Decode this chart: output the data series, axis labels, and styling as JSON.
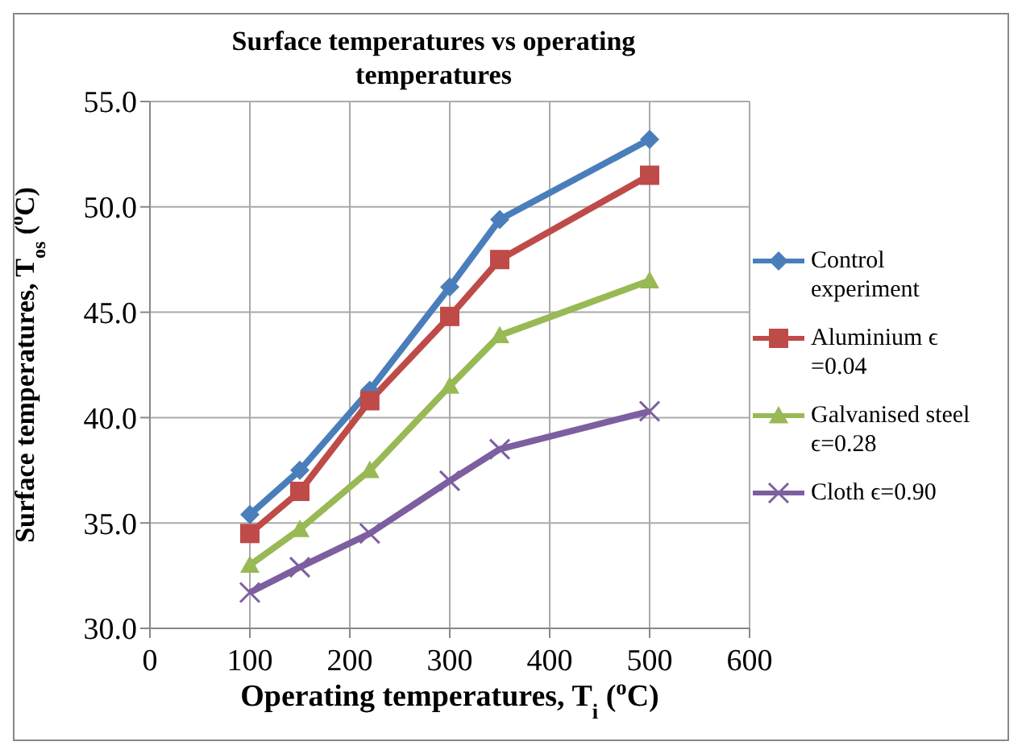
{
  "chart_data": {
    "type": "line",
    "title": "Surface temperatures vs operating temperatures",
    "xlabel": "Operating temperatures, T$_{i}$ ($^{o}$C)",
    "ylabel": "Surface temperatures, T$_{os}$ ($^{o}$C)",
    "x": [
      100,
      150,
      220,
      300,
      350,
      500
    ],
    "series": [
      {
        "name": "Control experiment",
        "color": "#4a7ebb",
        "marker": "diamond",
        "values": [
          35.4,
          37.5,
          41.3,
          46.2,
          49.4,
          53.2
        ]
      },
      {
        "name": "Aluminium ϵ =0.04",
        "color": "#be4b48",
        "marker": "square",
        "values": [
          34.5,
          36.5,
          40.8,
          44.8,
          47.5,
          51.5
        ]
      },
      {
        "name": "Galvanised steel ϵ=0.28",
        "color": "#98b954",
        "marker": "triangle",
        "values": [
          33.0,
          34.7,
          37.5,
          41.5,
          43.9,
          46.5
        ]
      },
      {
        "name": "Cloth ϵ=0.90",
        "color": "#7d5fa0",
        "marker": "cross",
        "values": [
          31.7,
          32.9,
          34.5,
          37.0,
          38.5,
          40.3
        ]
      }
    ],
    "xlim": [
      0,
      600
    ],
    "xticks": [
      0,
      100,
      200,
      300,
      400,
      500,
      600
    ],
    "ylim": [
      30,
      55
    ],
    "yticks": [
      {
        "value": 30,
        "label": "30.0"
      },
      {
        "value": 35,
        "label": "35.0"
      },
      {
        "value": 40,
        "label": "40.0"
      },
      {
        "value": 45,
        "label": "45.0"
      },
      {
        "value": 50,
        "label": "50.0"
      },
      {
        "value": 55,
        "label": "55.0"
      }
    ],
    "grid": true,
    "legend": "right",
    "line_style": "solid"
  }
}
